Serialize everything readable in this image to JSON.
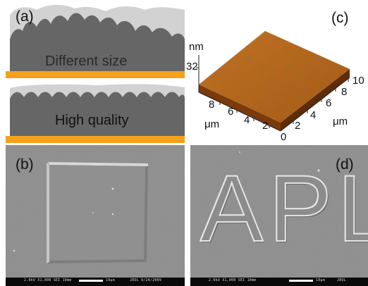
{
  "panel_a": {
    "label": "(a)",
    "top_caption": "Different size",
    "bottom_caption": "High quality",
    "colors": {
      "substrate": "#f5a11c",
      "film": "#666666",
      "halo": "#d2d2d2"
    }
  },
  "panel_c": {
    "label": "(c)",
    "z_unit": "nm",
    "z_value": "32",
    "left_axis_unit": "μm",
    "right_axis_unit": "μm",
    "left_ticks": [
      "8",
      "6",
      "4",
      "2"
    ],
    "right_ticks": [
      "2",
      "4",
      "6",
      "8",
      "10"
    ],
    "origin_tick": "0",
    "colors": {
      "surface_top": "#b8651c",
      "surface_side": "#6b3208"
    }
  },
  "panel_b": {
    "label": "(b)",
    "scale_label": "10μm",
    "footer_left": "2.0kV  X1,000  SEI  10mm",
    "footer_right": "JEOL   9/24/2009"
  },
  "panel_d": {
    "label": "(d)",
    "letters": "APL",
    "scale_label": "10μm",
    "footer_left": "2.0kV  X1,000  SEI  10mm",
    "footer_right": "JEOL"
  }
}
